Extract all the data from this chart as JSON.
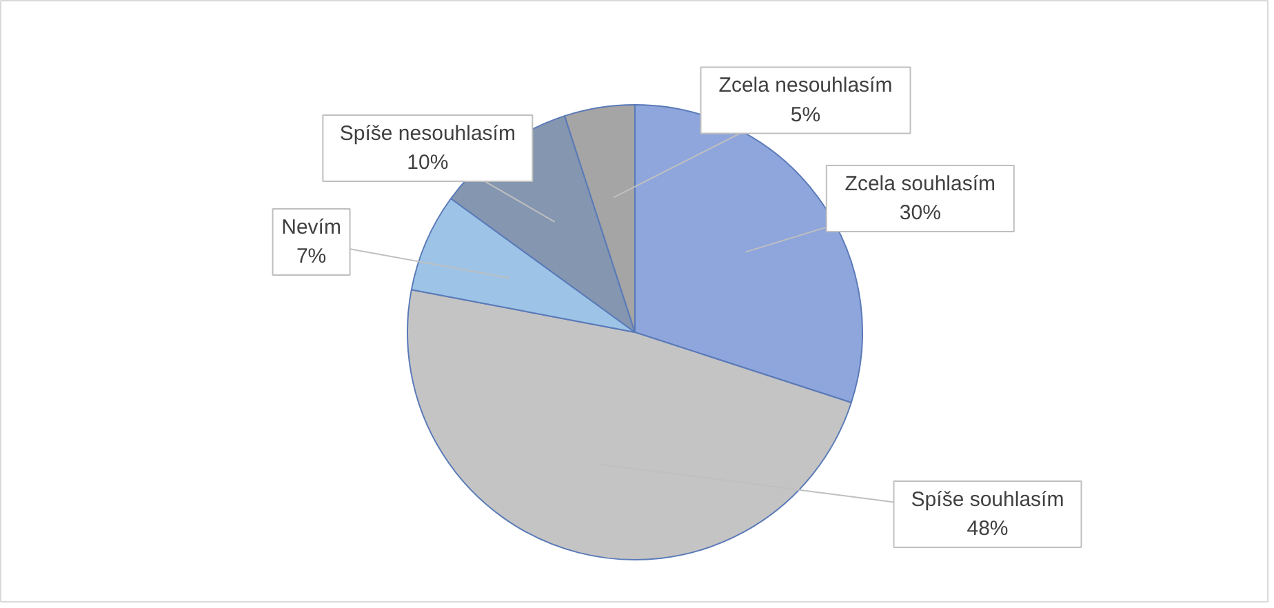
{
  "chart_data": {
    "type": "pie",
    "categories": [
      "Zcela souhlasím",
      "Spíše souhlasím",
      "Nevím",
      "Spíše nesouhlasím",
      "Zcela nesouhlasím"
    ],
    "values": [
      30,
      48,
      7,
      10,
      5
    ],
    "value_labels": [
      "30%",
      "48%",
      "7%",
      "10%",
      "5%"
    ],
    "colors": [
      "#8fa6dc",
      "#c4c4c4",
      "#9dc3e6",
      "#8496b0",
      "#a5a5a5"
    ]
  }
}
